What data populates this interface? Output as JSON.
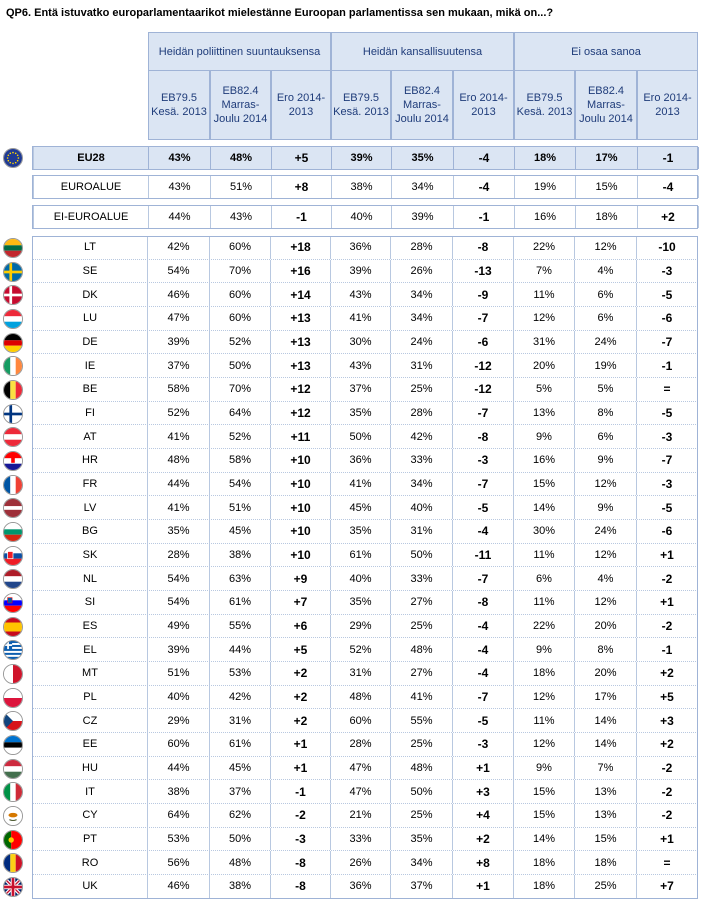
{
  "title": "QP6. Entä istuvatko europarlamentaarikot mielestänne Euroopan parlamentissa sen mukaan, mikä on...?",
  "groups": [
    "Heidän poliittinen suuntauksensa",
    "Heidän kansallisuutensa",
    "Ei osaa sanoa"
  ],
  "subheaders": [
    "EB79.5 Kesä. 2013",
    "EB82.4 Marras-Joulu 2014",
    "Ero 2014-2013"
  ],
  "rows": [
    {
      "label": "EU28",
      "vals": [
        "43%",
        "48%",
        "+5",
        "39%",
        "35%",
        "-4",
        "18%",
        "17%",
        "-1"
      ],
      "kind": "eu",
      "flag": "eu"
    },
    {
      "label": "EUROALUE",
      "vals": [
        "43%",
        "51%",
        "+8",
        "38%",
        "34%",
        "-4",
        "19%",
        "15%",
        "-4"
      ],
      "kind": "summary"
    },
    {
      "label": "EI-EUROALUE",
      "vals": [
        "44%",
        "43%",
        "-1",
        "40%",
        "39%",
        "-1",
        "16%",
        "18%",
        "+2"
      ],
      "kind": "summary"
    },
    {
      "label": "LT",
      "vals": [
        "42%",
        "60%",
        "+18",
        "36%",
        "28%",
        "-8",
        "22%",
        "12%",
        "-10"
      ],
      "flag": "lt"
    },
    {
      "label": "SE",
      "vals": [
        "54%",
        "70%",
        "+16",
        "39%",
        "26%",
        "-13",
        "7%",
        "4%",
        "-3"
      ],
      "flag": "se"
    },
    {
      "label": "DK",
      "vals": [
        "46%",
        "60%",
        "+14",
        "43%",
        "34%",
        "-9",
        "11%",
        "6%",
        "-5"
      ],
      "flag": "dk"
    },
    {
      "label": "LU",
      "vals": [
        "47%",
        "60%",
        "+13",
        "41%",
        "34%",
        "-7",
        "12%",
        "6%",
        "-6"
      ],
      "flag": "lu"
    },
    {
      "label": "DE",
      "vals": [
        "39%",
        "52%",
        "+13",
        "30%",
        "24%",
        "-6",
        "31%",
        "24%",
        "-7"
      ],
      "flag": "de"
    },
    {
      "label": "IE",
      "vals": [
        "37%",
        "50%",
        "+13",
        "43%",
        "31%",
        "-12",
        "20%",
        "19%",
        "-1"
      ],
      "flag": "ie"
    },
    {
      "label": "BE",
      "vals": [
        "58%",
        "70%",
        "+12",
        "37%",
        "25%",
        "-12",
        "5%",
        "5%",
        "="
      ],
      "flag": "be"
    },
    {
      "label": "FI",
      "vals": [
        "52%",
        "64%",
        "+12",
        "35%",
        "28%",
        "-7",
        "13%",
        "8%",
        "-5"
      ],
      "flag": "fi"
    },
    {
      "label": "AT",
      "vals": [
        "41%",
        "52%",
        "+11",
        "50%",
        "42%",
        "-8",
        "9%",
        "6%",
        "-3"
      ],
      "flag": "at"
    },
    {
      "label": "HR",
      "vals": [
        "48%",
        "58%",
        "+10",
        "36%",
        "33%",
        "-3",
        "16%",
        "9%",
        "-7"
      ],
      "flag": "hr"
    },
    {
      "label": "FR",
      "vals": [
        "44%",
        "54%",
        "+10",
        "41%",
        "34%",
        "-7",
        "15%",
        "12%",
        "-3"
      ],
      "flag": "fr"
    },
    {
      "label": "LV",
      "vals": [
        "41%",
        "51%",
        "+10",
        "45%",
        "40%",
        "-5",
        "14%",
        "9%",
        "-5"
      ],
      "flag": "lv"
    },
    {
      "label": "BG",
      "vals": [
        "35%",
        "45%",
        "+10",
        "35%",
        "31%",
        "-4",
        "30%",
        "24%",
        "-6"
      ],
      "flag": "bg"
    },
    {
      "label": "SK",
      "vals": [
        "28%",
        "38%",
        "+10",
        "61%",
        "50%",
        "-11",
        "11%",
        "12%",
        "+1"
      ],
      "flag": "sk"
    },
    {
      "label": "NL",
      "vals": [
        "54%",
        "63%",
        "+9",
        "40%",
        "33%",
        "-7",
        "6%",
        "4%",
        "-2"
      ],
      "flag": "nl"
    },
    {
      "label": "SI",
      "vals": [
        "54%",
        "61%",
        "+7",
        "35%",
        "27%",
        "-8",
        "11%",
        "12%",
        "+1"
      ],
      "flag": "si"
    },
    {
      "label": "ES",
      "vals": [
        "49%",
        "55%",
        "+6",
        "29%",
        "25%",
        "-4",
        "22%",
        "20%",
        "-2"
      ],
      "flag": "es"
    },
    {
      "label": "EL",
      "vals": [
        "39%",
        "44%",
        "+5",
        "52%",
        "48%",
        "-4",
        "9%",
        "8%",
        "-1"
      ],
      "flag": "el"
    },
    {
      "label": "MT",
      "vals": [
        "51%",
        "53%",
        "+2",
        "31%",
        "27%",
        "-4",
        "18%",
        "20%",
        "+2"
      ],
      "flag": "mt"
    },
    {
      "label": "PL",
      "vals": [
        "40%",
        "42%",
        "+2",
        "48%",
        "41%",
        "-7",
        "12%",
        "17%",
        "+5"
      ],
      "flag": "pl"
    },
    {
      "label": "CZ",
      "vals": [
        "29%",
        "31%",
        "+2",
        "60%",
        "55%",
        "-5",
        "11%",
        "14%",
        "+3"
      ],
      "flag": "cz"
    },
    {
      "label": "EE",
      "vals": [
        "60%",
        "61%",
        "+1",
        "28%",
        "25%",
        "-3",
        "12%",
        "14%",
        "+2"
      ],
      "flag": "ee"
    },
    {
      "label": "HU",
      "vals": [
        "44%",
        "45%",
        "+1",
        "47%",
        "48%",
        "+1",
        "9%",
        "7%",
        "-2"
      ],
      "flag": "hu"
    },
    {
      "label": "IT",
      "vals": [
        "38%",
        "37%",
        "-1",
        "47%",
        "50%",
        "+3",
        "15%",
        "13%",
        "-2"
      ],
      "flag": "it"
    },
    {
      "label": "CY",
      "vals": [
        "64%",
        "62%",
        "-2",
        "21%",
        "25%",
        "+4",
        "15%",
        "13%",
        "-2"
      ],
      "flag": "cy"
    },
    {
      "label": "PT",
      "vals": [
        "53%",
        "50%",
        "-3",
        "33%",
        "35%",
        "+2",
        "14%",
        "15%",
        "+1"
      ],
      "flag": "pt"
    },
    {
      "label": "RO",
      "vals": [
        "56%",
        "48%",
        "-8",
        "26%",
        "34%",
        "+8",
        "18%",
        "18%",
        "="
      ],
      "flag": "ro"
    },
    {
      "label": "UK",
      "vals": [
        "46%",
        "38%",
        "-8",
        "36%",
        "37%",
        "+1",
        "18%",
        "25%",
        "+7"
      ],
      "flag": "uk"
    }
  ],
  "colors": {
    "header_bg": "#dbe5f3",
    "header_text": "#1f3c7a",
    "border": "#9fb3d6"
  }
}
